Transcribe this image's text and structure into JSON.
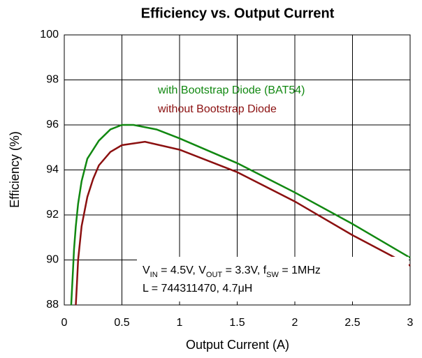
{
  "chart_data": {
    "type": "line",
    "title": "Efficiency vs. Output Current",
    "x_label": "Output Current (A)",
    "y_label": "Efficiency (%)",
    "xlim": [
      0,
      3
    ],
    "xticks": [
      0,
      0.5,
      1,
      1.5,
      2,
      2.5,
      3
    ],
    "ylim": [
      88,
      100
    ],
    "yticks": [
      88,
      90,
      92,
      94,
      96,
      98,
      100
    ],
    "grid": true,
    "series": [
      {
        "name": "with Bootstrap Diode (BAT54)",
        "color": "#118811",
        "x": [
          0.06,
          0.075,
          0.085,
          0.1,
          0.12,
          0.15,
          0.2,
          0.3,
          0.4,
          0.5,
          0.6,
          0.8,
          1.0,
          1.5,
          2.0,
          2.5,
          3.0
        ],
        "values": [
          88,
          89.5,
          90.5,
          91.5,
          92.5,
          93.5,
          94.5,
          95.3,
          95.8,
          96.0,
          96.0,
          95.8,
          95.4,
          94.3,
          93.0,
          91.6,
          90.1
        ]
      },
      {
        "name": "without Bootstrap Diode",
        "color": "#8b1010",
        "x": [
          0.1,
          0.11,
          0.12,
          0.15,
          0.2,
          0.25,
          0.3,
          0.4,
          0.5,
          0.7,
          1.0,
          1.5,
          2.0,
          2.5,
          3.0
        ],
        "values": [
          88,
          89,
          90,
          91.5,
          92.8,
          93.6,
          94.2,
          94.8,
          95.1,
          95.25,
          94.9,
          93.9,
          92.6,
          91.1,
          89.75
        ]
      }
    ],
    "annotation": [
      [
        "V",
        "IN",
        " = 4.5V, V",
        "OUT",
        " = 3.3V, f",
        "SW",
        " = 1MHz"
      ],
      "L = 744311470, 4.7μH"
    ]
  }
}
